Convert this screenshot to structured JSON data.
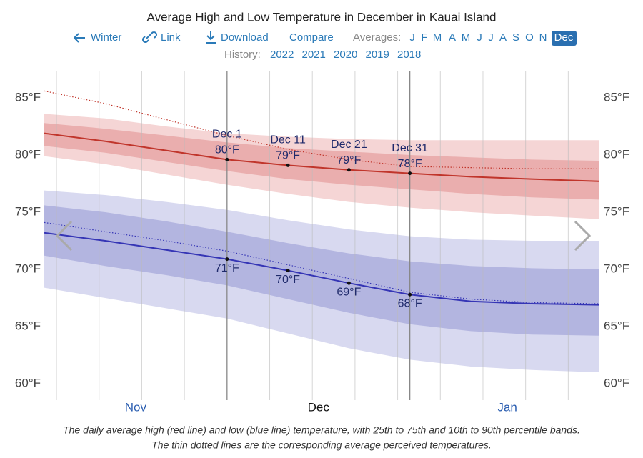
{
  "header": {
    "title": "Average High and Low Temperature in December in Kauai Island",
    "nav": [
      "Winter",
      "Link",
      "Download",
      "Compare"
    ],
    "averages_label": "Averages:",
    "months": [
      "J",
      "F",
      "M",
      "A",
      "M",
      "J",
      "J",
      "A",
      "S",
      "O",
      "N",
      "Dec"
    ],
    "history_label": "History:",
    "years": [
      "2022",
      "2021",
      "2020",
      "2019",
      "2018"
    ]
  },
  "chart_data": {
    "type": "line",
    "x": [
      0,
      10,
      20,
      30,
      40,
      50,
      60,
      70,
      80,
      91
    ],
    "xlim": [
      0,
      91
    ],
    "xticks": [
      {
        "value": 15,
        "label": "Nov"
      },
      {
        "value": 45,
        "label": "Dec"
      },
      {
        "value": 76,
        "label": "Jan"
      }
    ],
    "xgrid": [
      2,
      9,
      16,
      23,
      37,
      44,
      51,
      58,
      65,
      72,
      79,
      86
    ],
    "ylim": [
      60,
      85
    ],
    "yticks": [
      {
        "value": 60,
        "label": "60°F"
      },
      {
        "value": 65,
        "label": "65°F"
      },
      {
        "value": 70,
        "label": "70°F"
      },
      {
        "value": 75,
        "label": "75°F"
      },
      {
        "value": 80,
        "label": "80°F"
      },
      {
        "value": 85,
        "label": "85°F"
      }
    ],
    "point_dates": [
      null,
      null,
      null,
      "Dec 1",
      "Dec 11",
      "Dec 21",
      "Dec 31",
      null,
      null,
      null
    ],
    "bands": [
      {
        "color": "#f5d5d5",
        "upper": [
          83.6,
          83.2,
          82.5,
          81.9,
          81.6,
          81.4,
          81.3,
          81.3,
          81.3,
          81.3
        ],
        "lower": [
          79.9,
          79.2,
          78.3,
          77.4,
          76.6,
          75.9,
          75.4,
          75.0,
          74.7,
          74.4
        ]
      },
      {
        "color": "#eaaeae",
        "upper": [
          82.8,
          82.3,
          81.7,
          81.1,
          80.6,
          80.3,
          80.0,
          79.8,
          79.6,
          79.5
        ],
        "lower": [
          80.8,
          80.2,
          79.4,
          78.6,
          77.9,
          77.4,
          77.0,
          76.6,
          76.3,
          76.1
        ]
      },
      {
        "color": "#d8d9f0",
        "upper": [
          76.9,
          76.5,
          75.9,
          75.2,
          74.3,
          73.5,
          72.9,
          72.6,
          72.5,
          72.5
        ],
        "lower": [
          68.4,
          67.5,
          66.6,
          65.7,
          64.4,
          63.1,
          62.1,
          61.5,
          61.2,
          61.0
        ]
      },
      {
        "color": "#b3b5e0",
        "upper": [
          75.6,
          75.0,
          74.2,
          73.3,
          72.3,
          71.4,
          70.7,
          70.3,
          70.1,
          70.0
        ],
        "lower": [
          71.2,
          70.3,
          69.5,
          68.6,
          67.4,
          66.2,
          65.2,
          64.6,
          64.3,
          64.2
        ]
      }
    ],
    "series": [
      {
        "color": "#c0352b",
        "style": "solid",
        "values": [
          81.9,
          81.2,
          80.4,
          79.6,
          79.1,
          78.7,
          78.4,
          78.1,
          77.9,
          77.7
        ],
        "value_labels": [
          null,
          null,
          null,
          "80°F",
          "79°F",
          "79°F",
          "78°F",
          null,
          null,
          null
        ],
        "label_side": "above"
      },
      {
        "color": "#3535b5",
        "style": "solid",
        "values": [
          73.2,
          72.5,
          71.7,
          70.9,
          69.9,
          68.8,
          67.8,
          67.2,
          67.0,
          66.9
        ],
        "value_labels": [
          null,
          null,
          null,
          "71°F",
          "70°F",
          "69°F",
          "68°F",
          null,
          null,
          null
        ],
        "label_side": "below"
      },
      {
        "color": "#c0352b",
        "style": "dotted",
        "values": [
          85.6,
          84.5,
          83.1,
          81.7,
          80.5,
          79.6,
          79.0,
          78.9,
          78.8,
          78.8
        ]
      },
      {
        "color": "#3535b5",
        "style": "dotted",
        "values": [
          74.1,
          73.3,
          72.5,
          71.6,
          70.4,
          69.2,
          68.0,
          67.4,
          67.1,
          67.0
        ]
      }
    ]
  },
  "caption": [
    "The daily average high (red line) and low (blue line) temperature, with 25th to 75th and 10th to 90th percentile bands.",
    "The thin dotted lines are the corresponding average perceived temperatures."
  ]
}
